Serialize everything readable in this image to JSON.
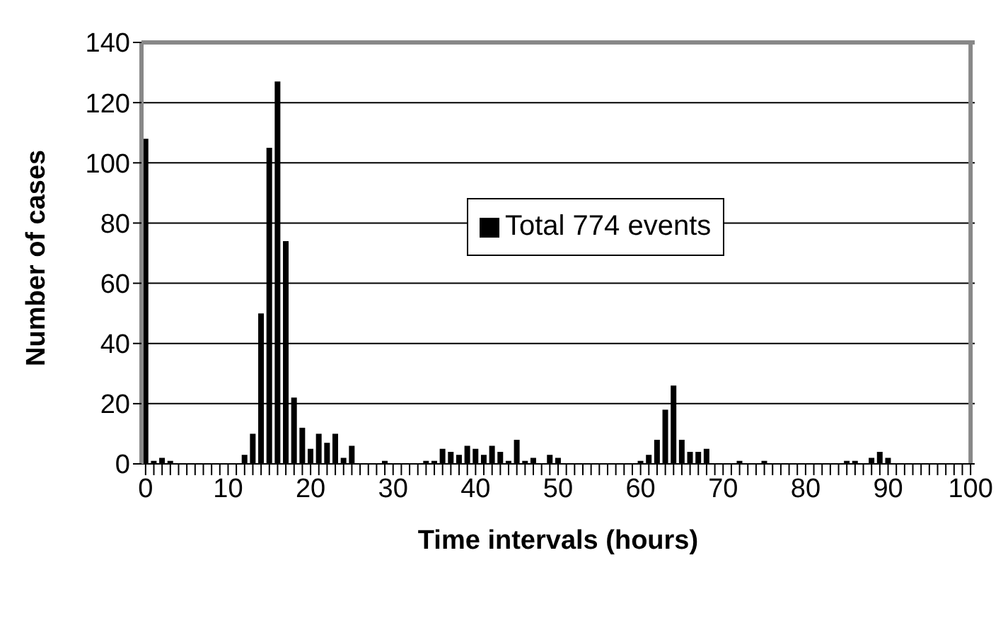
{
  "chart_data": {
    "type": "bar",
    "xlabel": "Time intervals (hours)",
    "ylabel": "Number of cases",
    "categories": [
      "0",
      null,
      null,
      null,
      null,
      null,
      null,
      null,
      null,
      null,
      "10",
      null,
      null,
      null,
      null,
      null,
      null,
      null,
      null,
      null,
      "20",
      null,
      null,
      null,
      null,
      null,
      null,
      null,
      null,
      null,
      "30",
      null,
      null,
      null,
      null,
      null,
      null,
      null,
      null,
      null,
      "40",
      null,
      null,
      null,
      null,
      null,
      null,
      null,
      null,
      null,
      "50",
      null,
      null,
      null,
      null,
      null,
      null,
      null,
      null,
      null,
      "60",
      null,
      null,
      null,
      null,
      null,
      null,
      null,
      null,
      null,
      "70",
      null,
      null,
      null,
      null,
      null,
      null,
      null,
      null,
      null,
      "80",
      null,
      null,
      null,
      null,
      null,
      null,
      null,
      null,
      null,
      "90",
      null,
      null,
      null,
      null,
      null,
      null,
      null,
      null,
      null,
      "100"
    ],
    "series": [
      {
        "name": "Total 774 events",
        "color": "#000000",
        "values": [
          108,
          1,
          2,
          1,
          0,
          0,
          0,
          0,
          0,
          0,
          0,
          0,
          3,
          10,
          50,
          105,
          127,
          74,
          22,
          12,
          5,
          10,
          7,
          10,
          2,
          6,
          0,
          0,
          0,
          1,
          0,
          0,
          0,
          0,
          1,
          1,
          5,
          4,
          3,
          6,
          5,
          3,
          6,
          4,
          1,
          8,
          1,
          2,
          0,
          3,
          2,
          0,
          0,
          0,
          0,
          0,
          0,
          0,
          0,
          0,
          1,
          3,
          8,
          18,
          26,
          8,
          4,
          4,
          5,
          0,
          0,
          0,
          1,
          0,
          0,
          1,
          0,
          0,
          0,
          0,
          0,
          0,
          0,
          0,
          0,
          1,
          1,
          0,
          2,
          4,
          2,
          0,
          0,
          0,
          0,
          0,
          0,
          0,
          0,
          0,
          0
        ]
      }
    ],
    "ylim": [
      0,
      140
    ],
    "yticks": [
      0,
      20,
      40,
      60,
      80,
      100,
      120,
      140
    ],
    "grid": "y",
    "legend": "top"
  }
}
